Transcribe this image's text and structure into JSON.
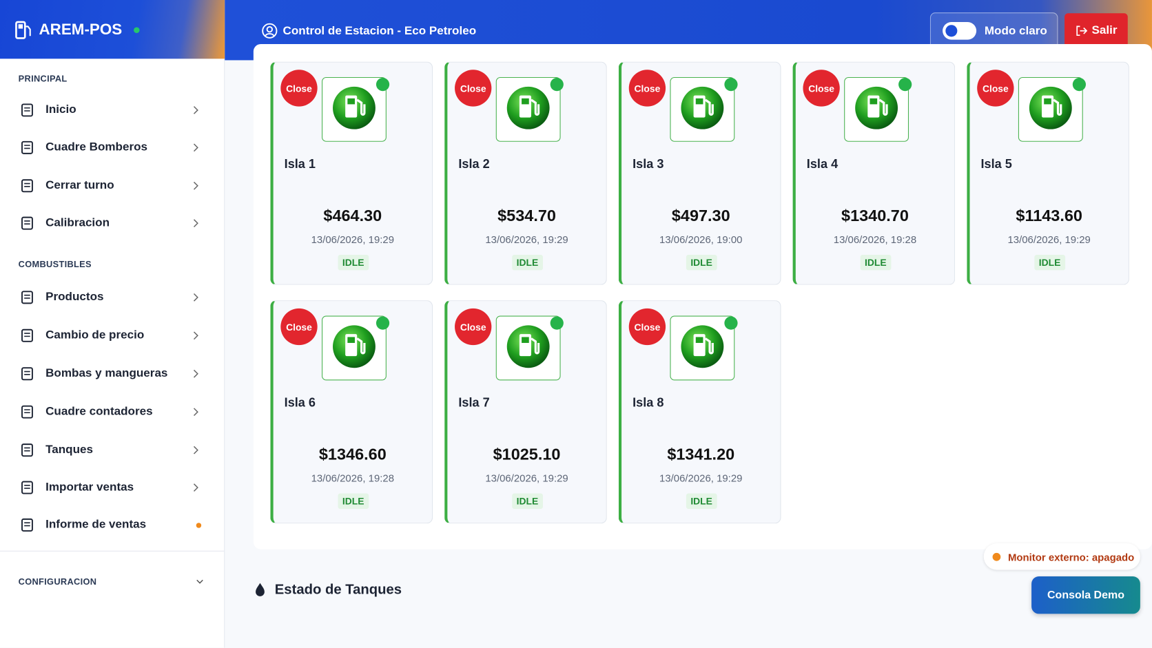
{
  "sidebar": {
    "brand": "AREM-POS",
    "sections": [
      {
        "label": "PRINCIPAL",
        "items": [
          "Inicio",
          "Cuadre Bomberos",
          "Cerrar turno",
          "Calibracion"
        ]
      },
      {
        "label": "COMBUSTIBLES",
        "items": [
          "Productos",
          "Cambio de precio",
          "Bombas y mangueras",
          "Cuadre contadores",
          "Tanques",
          "Importar ventas",
          "Informe de ventas"
        ]
      }
    ],
    "config_section": "CONFIGURACION"
  },
  "header": {
    "title": "Control de Estacion - Eco Petroleo",
    "toggle_label": "Modo claro",
    "logout": "Salir"
  },
  "islands": [
    {
      "close": "Close",
      "name": "Isla 1",
      "amount": "$464.30",
      "datetime": "13/06/2026, 19:29",
      "status": "IDLE"
    },
    {
      "close": "Close",
      "name": "Isla 2",
      "amount": "$534.70",
      "datetime": "13/06/2026, 19:29",
      "status": "IDLE"
    },
    {
      "close": "Close",
      "name": "Isla 3",
      "amount": "$497.30",
      "datetime": "13/06/2026, 19:00",
      "status": "IDLE"
    },
    {
      "close": "Close",
      "name": "Isla 4",
      "amount": "$1340.70",
      "datetime": "13/06/2026, 19:28",
      "status": "IDLE"
    },
    {
      "close": "Close",
      "name": "Isla 5",
      "amount": "$1143.60",
      "datetime": "13/06/2026, 19:29",
      "status": "IDLE"
    },
    {
      "close": "Close",
      "name": "Isla 6",
      "amount": "$1346.60",
      "datetime": "13/06/2026, 19:28",
      "status": "IDLE"
    },
    {
      "close": "Close",
      "name": "Isla 7",
      "amount": "$1025.10",
      "datetime": "13/06/2026, 19:29",
      "status": "IDLE"
    },
    {
      "close": "Close",
      "name": "Isla 8",
      "amount": "$1341.20",
      "datetime": "13/06/2026, 19:29",
      "status": "IDLE"
    }
  ],
  "tanks": {
    "heading": "Estado de Tanques"
  },
  "footer": {
    "monitor": "Monitor externo: apagado",
    "console": "Consola Demo"
  }
}
